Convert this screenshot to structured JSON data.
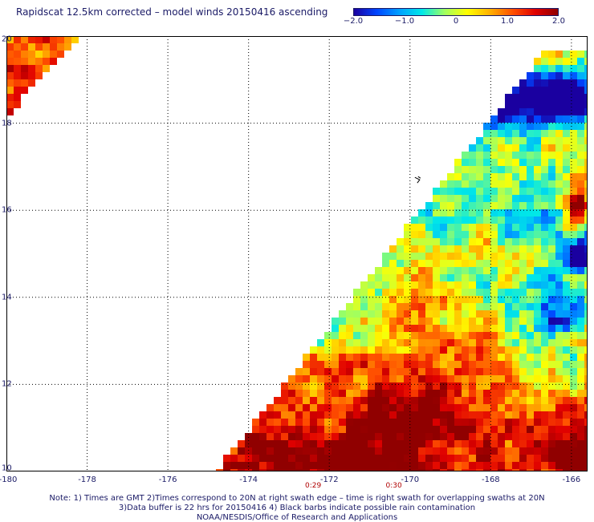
{
  "title": "Rapidscat 12.5km corrected – model winds 20150416 ascending",
  "colorbar": {
    "labels": [
      "−2.0",
      "−1.0",
      "0",
      "1.0",
      "2.0"
    ],
    "label_values": [
      -2.0,
      -1.0,
      0,
      1.0,
      2.0
    ],
    "colors": [
      "#1a00a0",
      "#0044ff",
      "#00a0ff",
      "#00e8e8",
      "#a0ff60",
      "#ffff00",
      "#ffb000",
      "#ff5000",
      "#e00000",
      "#900000"
    ],
    "range": [
      -2.0,
      2.0
    ]
  },
  "axes": {
    "x_ticks": [
      "-180",
      "-178",
      "-176",
      "-174",
      "-172",
      "-170",
      "-168",
      "-166"
    ],
    "x_values": [
      -180,
      -178,
      -176,
      -174,
      -172,
      -170,
      -168,
      -166
    ],
    "y_ticks": [
      "10",
      "12",
      "14",
      "16",
      "18",
      "20"
    ],
    "y_values": [
      10,
      12,
      14,
      16,
      18,
      20
    ],
    "x_range": [
      -180,
      -165.6
    ],
    "y_range": [
      10,
      20
    ],
    "grid": "dotted",
    "time_labels": [
      {
        "text": "0:29",
        "lon": -172.4
      },
      {
        "text": "0:30",
        "lon": -170.4
      }
    ]
  },
  "notes": [
    "Note: 1) Times are GMT 2)Times correspond to 20N at right swath edge – time is right swath for overlapping swaths at 20N",
    "3)Data buffer is 22 hrs for 20150416 4) Black barbs indicate possible rain contamination",
    "NOAA/NESDIS/Office of Research and Applications"
  ],
  "chart_data": {
    "type": "heatmap",
    "title": "Rapidscat 12.5km corrected – model winds 20150416 ascending",
    "units": "",
    "value_range": [
      -2.0,
      2.0
    ],
    "x_range": [
      -180,
      -165.6
    ],
    "y_range": [
      10,
      20
    ],
    "swaths": [
      {
        "name": "upper-left swath",
        "lat_range": [
          18.2,
          20
        ],
        "lon_range": [
          -180,
          -178.2
        ],
        "dominant_values": "0.5 to 2.0"
      },
      {
        "name": "main swath",
        "lat_range": [
          10,
          19.8
        ],
        "lon_range": [
          -174.8,
          -165.6
        ],
        "dominant_values": "-2.0 to 2.0"
      }
    ],
    "features": [
      {
        "region": "north-east (lat 18.2-19.2, lon -167.5 to -166)",
        "value": "about -2.0"
      },
      {
        "region": "east (lat 14.6-15.4, lon -166.2 to -165.6)",
        "value": "about -1.8"
      },
      {
        "region": "south (lat 10-11.5, lon -174 to -168)",
        "value": "1.5 to 2.0"
      },
      {
        "region": "south-east corner (lat 10-10.8, lon -166.5 to -165.6)",
        "value": "about 2.0"
      }
    ]
  }
}
